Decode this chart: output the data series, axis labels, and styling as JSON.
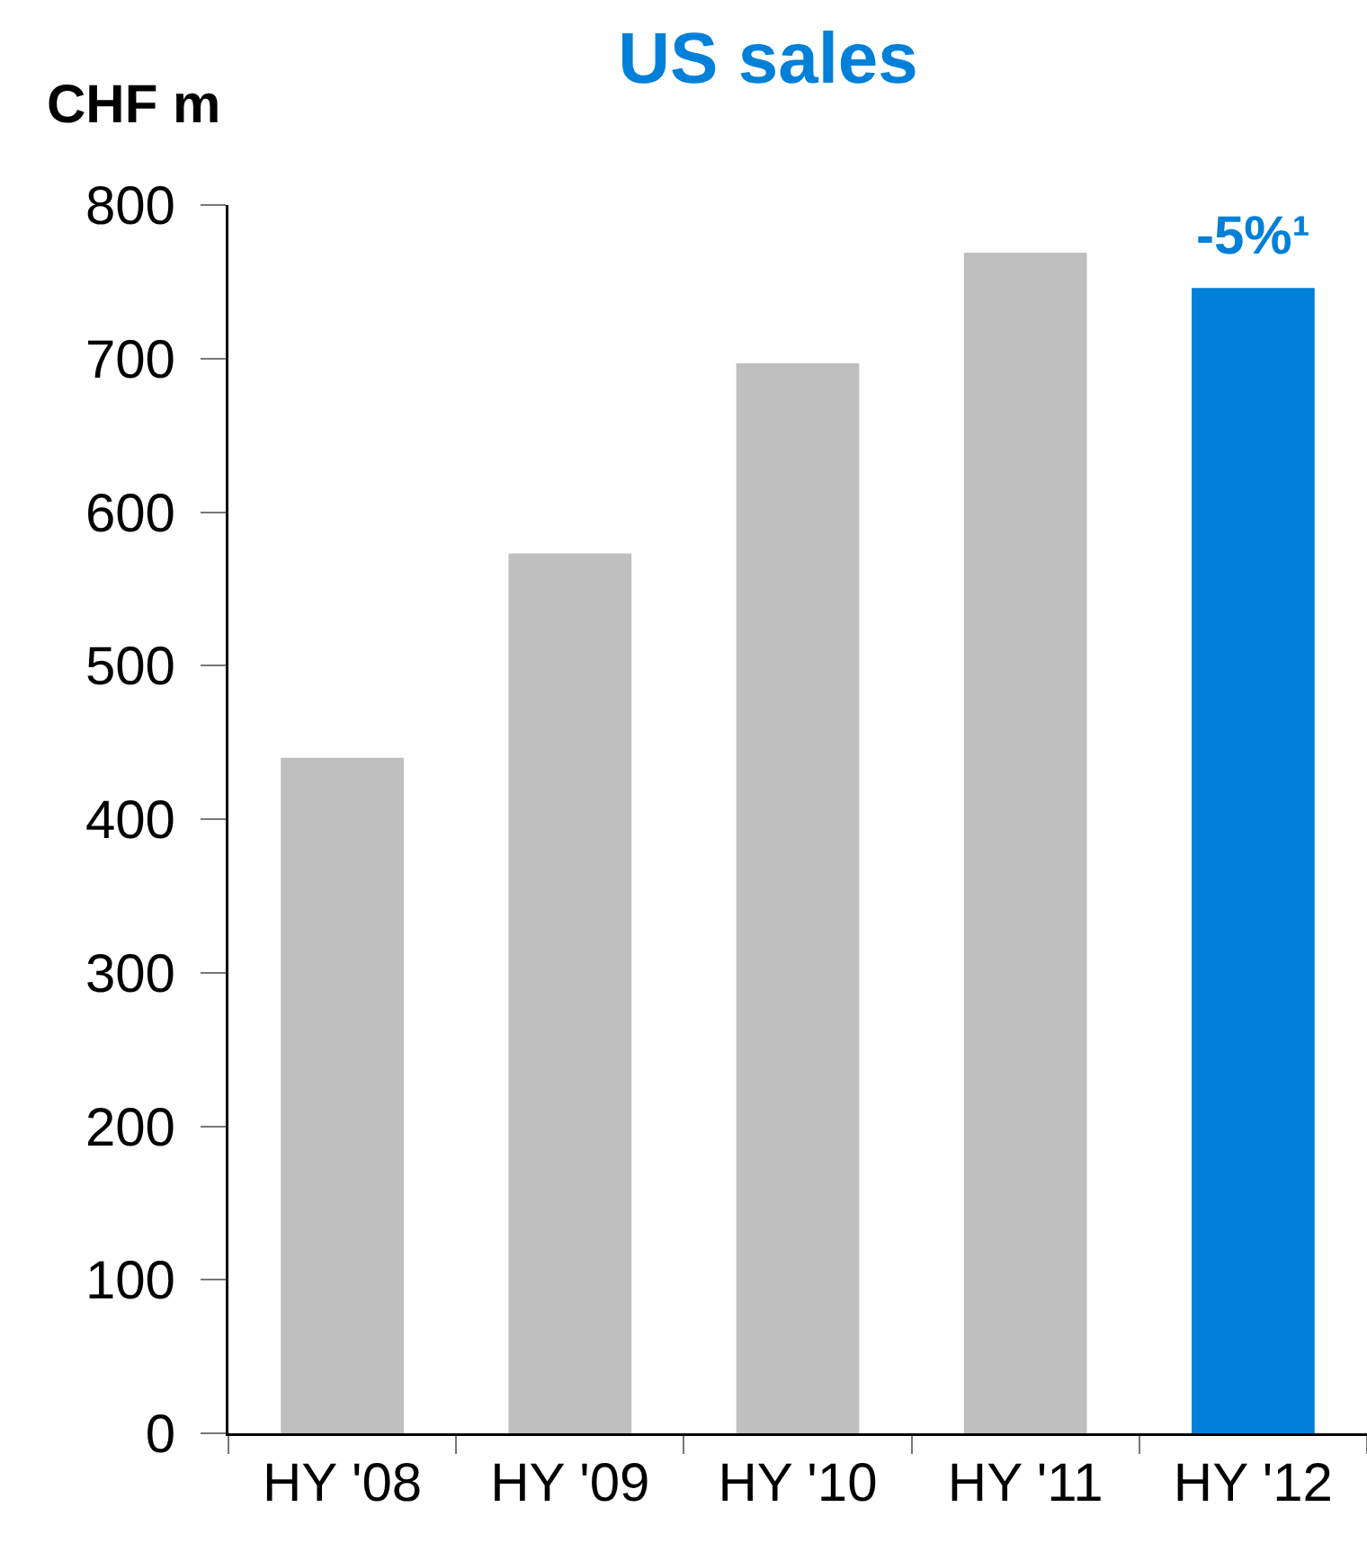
{
  "chart_data": {
    "type": "bar",
    "title": "US sales",
    "ylabel": "CHF m",
    "categories": [
      "HY '08",
      "HY '09",
      "HY '10",
      "HY '11",
      "HY '12"
    ],
    "values": [
      440,
      573,
      697,
      769,
      746
    ],
    "colors": [
      "#bfbfbf",
      "#bfbfbf",
      "#bfbfbf",
      "#bfbfbf",
      "#0080d8"
    ],
    "ylim": [
      0,
      800
    ],
    "yticks": [
      0,
      100,
      200,
      300,
      400,
      500,
      600,
      700,
      800
    ],
    "annotations": [
      {
        "text": "-5%¹",
        "x": "HY '12",
        "y": 746
      }
    ]
  }
}
